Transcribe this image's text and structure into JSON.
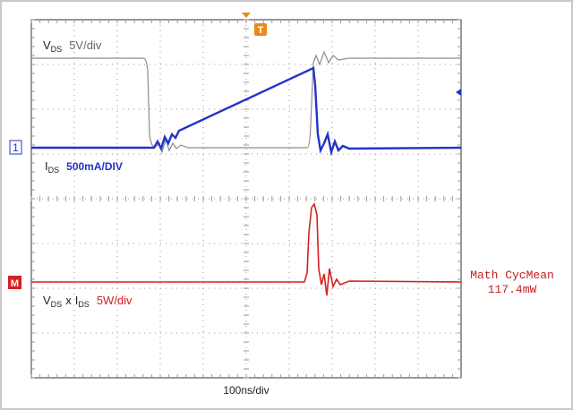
{
  "trace_labels": {
    "vds": {
      "name": "V",
      "subscript": "DS",
      "scale": "5V/div"
    },
    "ids": {
      "name": "I",
      "subscript": "DS",
      "scale": "500mA/DIV"
    },
    "power": {
      "name1": "V",
      "subscript1": "DS",
      "operator": "x",
      "name2": "I",
      "subscript2": "DS",
      "scale": "5W/div"
    }
  },
  "markers": {
    "trigger": "T",
    "channel1": "1",
    "math": "M"
  },
  "measurement": {
    "label": "Math CycMean",
    "value": "117.4mW"
  },
  "timebase": "100ns/div"
}
